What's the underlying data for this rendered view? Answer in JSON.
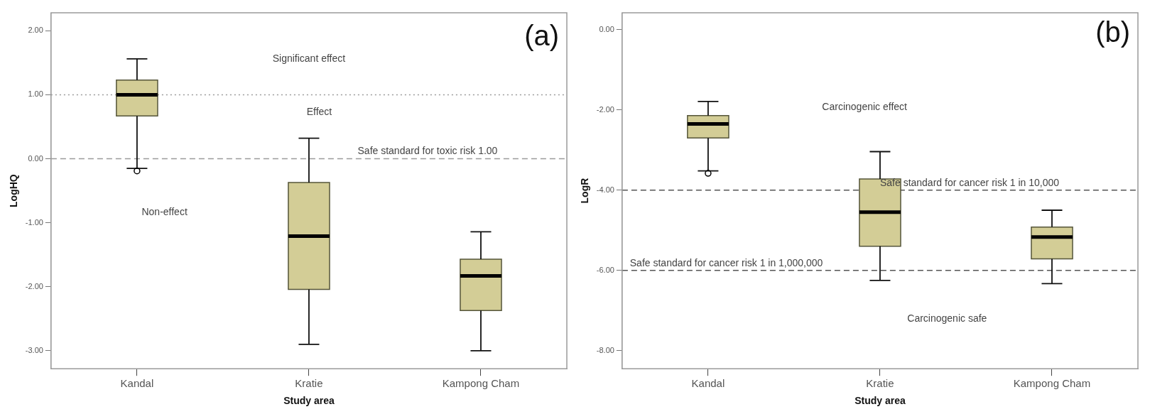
{
  "chart_data": [
    {
      "type": "box",
      "categories": [
        "Kandal",
        "Kratie",
        "Kampong Cham"
      ],
      "xlabel": "Study area",
      "ylabel": "LogHQ",
      "ylim": [
        -3.28,
        2.28
      ],
      "yticks": [
        {
          "value": 2,
          "label": "2.00"
        },
        {
          "value": 1,
          "label": "1.00"
        },
        {
          "value": 0,
          "label": "0.00"
        },
        {
          "value": -1,
          "label": "-1.00"
        },
        {
          "value": -2,
          "label": "-2.00"
        },
        {
          "value": -3,
          "label": "-3.00"
        }
      ],
      "grid": false,
      "legend": false,
      "series": [
        {
          "color": "#d3cd96",
          "boxes": [
            {
              "low": -0.15,
              "q1": 0.67,
              "median": 1.0,
              "q3": 1.23,
              "high": 1.56,
              "outliers": [
                -0.19
              ]
            },
            {
              "low": -2.9,
              "q1": -2.04,
              "median": -1.21,
              "q3": -0.37,
              "high": 0.32
            },
            {
              "low": -3.0,
              "q1": -2.37,
              "median": -1.83,
              "q3": -1.57,
              "high": -1.14
            }
          ]
        }
      ],
      "ref_lines": [
        {
          "axis": "y",
          "value": 1,
          "label": null,
          "color": "#9a9a9a",
          "line_style": "dotted"
        },
        {
          "axis": "y",
          "value": 0,
          "label": "Safe standard for toxic risk 1.00",
          "color": "#9a9a9a",
          "line_style": "dashed"
        }
      ],
      "annotations": [
        "(a)",
        "Significant effect",
        "Effect",
        "Non-effect"
      ]
    },
    {
      "type": "box",
      "categories": [
        "Kandal",
        "Kratie",
        "Kampong Cham"
      ],
      "xlabel": "Study area",
      "ylabel": "LogR",
      "ylim": [
        -8.45,
        0.42
      ],
      "yticks": [
        {
          "value": 0,
          "label": "0.00"
        },
        {
          "value": -2,
          "label": "-2.00"
        },
        {
          "value": -4,
          "label": "-4.00"
        },
        {
          "value": -6,
          "label": "-6.00"
        },
        {
          "value": -8,
          "label": "-8.00"
        }
      ],
      "grid": false,
      "legend": false,
      "series": [
        {
          "color": "#d3cd96",
          "boxes": [
            {
              "low": -3.52,
              "q1": -2.7,
              "median": -2.35,
              "q3": -2.14,
              "high": -1.79,
              "outliers": [
                -3.58
              ]
            },
            {
              "low": -6.25,
              "q1": -5.4,
              "median": -4.55,
              "q3": -3.72,
              "high": -3.04
            },
            {
              "low": -6.33,
              "q1": -5.71,
              "median": -5.17,
              "q3": -4.92,
              "high": -4.5
            }
          ]
        }
      ],
      "ref_lines": [
        {
          "axis": "y",
          "value": -4,
          "label": "Safe standard for cancer risk 1 in 10,000",
          "color": "#555555",
          "line_style": "dashed"
        },
        {
          "axis": "y",
          "value": -6,
          "label": "Safe standard for cancer risk 1 in 1,000,000",
          "color": "#555555",
          "line_style": "dashed"
        }
      ],
      "annotations": [
        "(b)",
        "Carcinogenic effect",
        "Carcinogenic safe"
      ]
    }
  ]
}
